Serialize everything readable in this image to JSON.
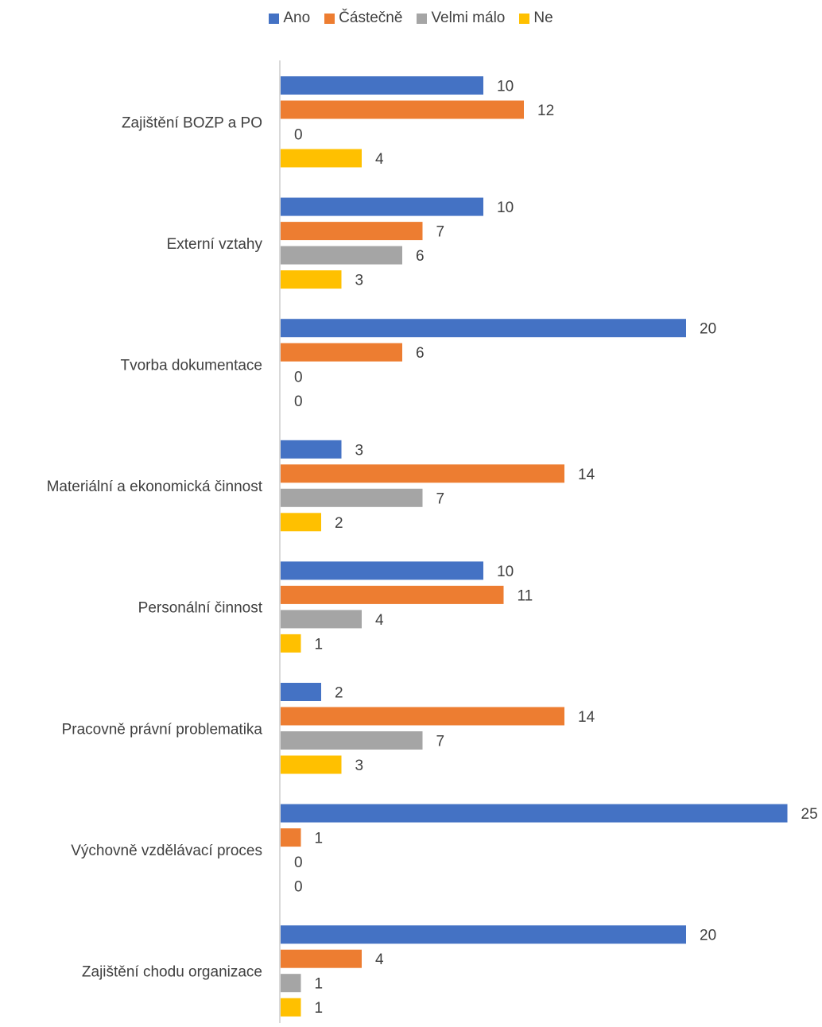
{
  "chart_data": {
    "type": "bar",
    "orientation": "horizontal",
    "categories": [
      "Zajištění BOZP a PO",
      "Externí vztahy",
      "Tvorba dokumentace",
      "Materiální a ekonomická činnost",
      "Personální činnost",
      "Pracovně právní problematika",
      "Výchovně vzdělávací proces",
      "Zajištění chodu organizace"
    ],
    "series": [
      {
        "name": "Ano",
        "color": "#4472C4",
        "values": [
          10,
          10,
          20,
          3,
          10,
          2,
          25,
          20
        ]
      },
      {
        "name": "Částečně",
        "color": "#ED7D31",
        "values": [
          12,
          7,
          6,
          14,
          11,
          14,
          1,
          4
        ]
      },
      {
        "name": "Velmi málo",
        "color": "#A5A5A5",
        "values": [
          0,
          6,
          0,
          7,
          4,
          7,
          0,
          1
        ]
      },
      {
        "name": "Ne",
        "color": "#FFC000",
        "values": [
          4,
          3,
          0,
          2,
          1,
          3,
          0,
          1
        ]
      }
    ],
    "title": "",
    "xlabel": "",
    "ylabel": "",
    "xlim": [
      0,
      25
    ],
    "grid": false,
    "legend_position": "top"
  }
}
